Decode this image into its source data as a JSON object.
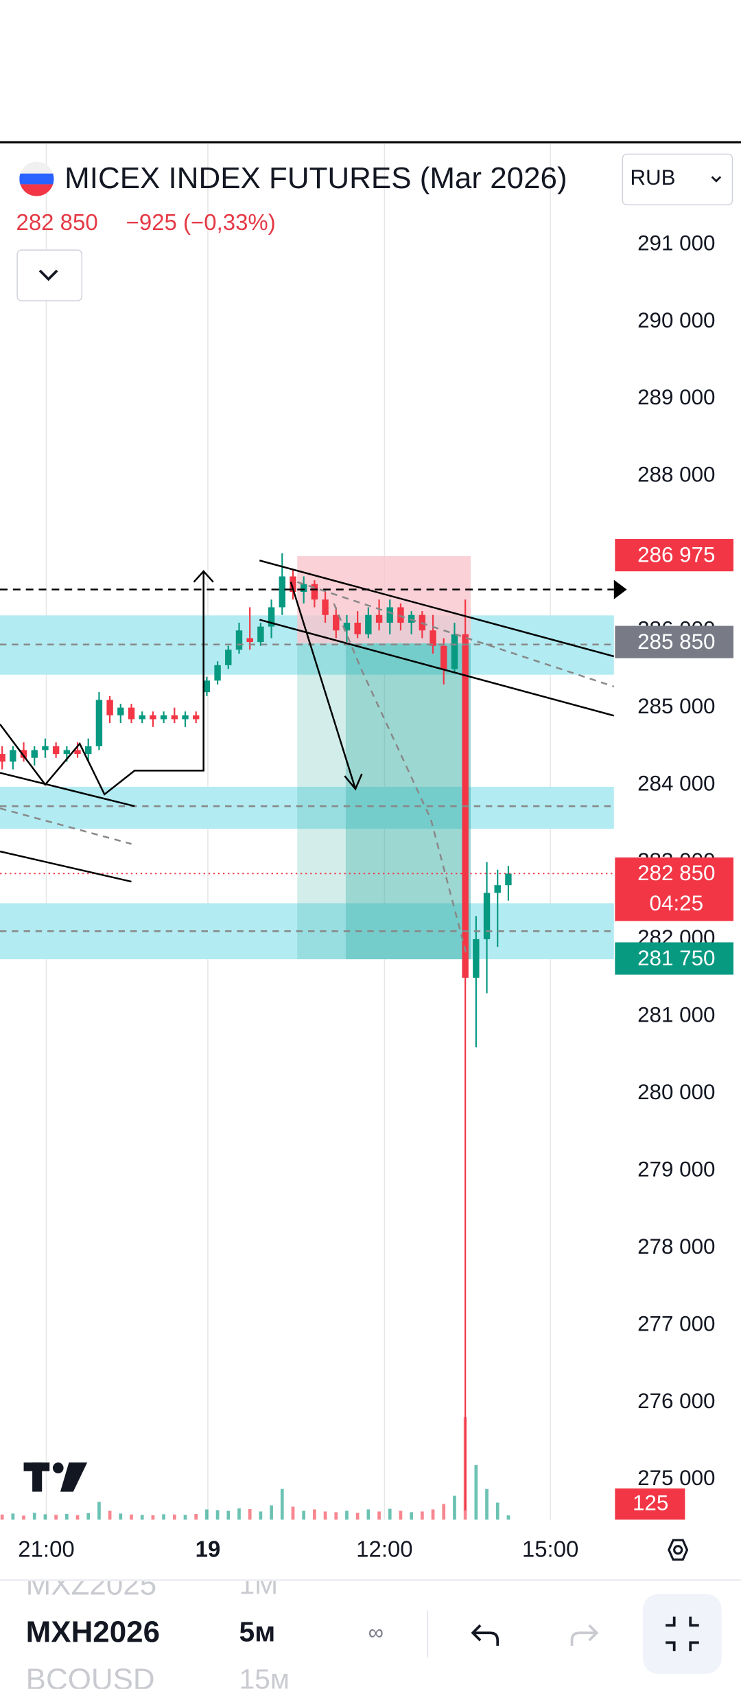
{
  "header": {
    "title": "MICEX INDEX FUTURES (Mar 2026)",
    "price": "282 850",
    "change": "−925 (−0,33%)",
    "currency": "RUB"
  },
  "chart_data": {
    "type": "candlestick",
    "open": [
      284400,
      284300,
      284450,
      284350,
      284450,
      284500,
      284400,
      284450,
      284400,
      284500,
      285100,
      284900,
      285000,
      284850,
      284900,
      284850,
      284900,
      284850,
      284900,
      285200,
      285350,
      285550,
      285750,
      285900,
      285850,
      286050,
      286300,
      286700,
      286500,
      286600,
      286400,
      286200,
      286000,
      286100,
      285950,
      286200,
      286100,
      286300,
      286100,
      286200,
      286000,
      285800,
      285500,
      285950,
      281500,
      282000,
      282600,
      282700
    ],
    "high": [
      284500,
      284500,
      284550,
      284500,
      284600,
      284550,
      284500,
      284550,
      284600,
      285200,
      285150,
      285050,
      285050,
      284950,
      284950,
      284950,
      285000,
      284950,
      284950,
      285400,
      285600,
      285800,
      286100,
      286300,
      286100,
      286400,
      287000,
      286800,
      286700,
      286650,
      286500,
      286300,
      286200,
      286250,
      286300,
      286400,
      286400,
      286350,
      286250,
      286250,
      286200,
      285900,
      286100,
      286400,
      282300,
      283000,
      282900,
      282950
    ],
    "low": [
      284200,
      284200,
      284300,
      284250,
      284350,
      284350,
      284300,
      284350,
      284300,
      284450,
      284800,
      284800,
      284800,
      284800,
      284750,
      284800,
      284800,
      284750,
      284800,
      285150,
      285300,
      285500,
      285700,
      285750,
      285800,
      285900,
      286200,
      286400,
      286350,
      286300,
      286100,
      285900,
      285850,
      285900,
      285900,
      286000,
      285950,
      286000,
      285950,
      285900,
      285700,
      285300,
      285450,
      274600,
      280600,
      281300,
      281900,
      282500
    ],
    "close": [
      284300,
      284450,
      284350,
      284450,
      284500,
      284400,
      284450,
      284400,
      284500,
      285100,
      284900,
      285000,
      284850,
      284900,
      284850,
      284900,
      284850,
      284900,
      284850,
      285350,
      285550,
      285750,
      286000,
      285850,
      286050,
      286300,
      286700,
      286500,
      286600,
      286400,
      286200,
      286000,
      286100,
      285950,
      286200,
      286100,
      286300,
      286100,
      286200,
      286000,
      285800,
      285500,
      285950,
      281500,
      282000,
      282600,
      282700,
      282850
    ],
    "volume": [
      150,
      180,
      120,
      200,
      160,
      140,
      170,
      130,
      190,
      520,
      260,
      180,
      150,
      140,
      130,
      160,
      150,
      140,
      170,
      300,
      280,
      260,
      330,
      310,
      240,
      420,
      900,
      380,
      260,
      300,
      240,
      220,
      260,
      200,
      300,
      240,
      320,
      260,
      220,
      240,
      300,
      460,
      700,
      3000,
      1600,
      900,
      500,
      125
    ],
    "volume_label": "125",
    "up_color": "#089981",
    "down_color": "#f23645",
    "ylim": [
      274480,
      292310
    ],
    "yticks": [
      {
        "value": 291000,
        "label": "291 000"
      },
      {
        "value": 290000,
        "label": "290 000"
      },
      {
        "value": 289000,
        "label": "289 000"
      },
      {
        "value": 288000,
        "label": "288 000"
      },
      {
        "value": 287000,
        "label": "287 000"
      },
      {
        "value": 286000,
        "label": "286 000"
      },
      {
        "value": 285000,
        "label": "285 000"
      },
      {
        "value": 284000,
        "label": "284 000"
      },
      {
        "value": 283000,
        "label": "283 000"
      },
      {
        "value": 282000,
        "label": "282 000"
      },
      {
        "value": 281000,
        "label": "281 000"
      },
      {
        "value": 280000,
        "label": "280 000"
      },
      {
        "value": 279000,
        "label": "279 000"
      },
      {
        "value": 278000,
        "label": "278 000"
      },
      {
        "value": 277000,
        "label": "277 000"
      },
      {
        "value": 276000,
        "label": "276 000"
      },
      {
        "value": 275000,
        "label": "275 000"
      }
    ],
    "time_labels": [
      "21:00",
      "19",
      "12:00",
      "15:00"
    ],
    "price_tags": [
      {
        "value": 286975,
        "label": "286 975",
        "color": "#f23645"
      },
      {
        "value": 285850,
        "label": "285 850",
        "color": "#787b86"
      },
      {
        "value": 282850,
        "label": "282 850",
        "color": "#f23645",
        "countdown": "04:25"
      },
      {
        "value": 281750,
        "label": "281 750",
        "color": "#089981"
      }
    ]
  },
  "toolbar": {
    "symbols": [
      {
        "ticker": "MXZ2025",
        "interval": "1M"
      },
      {
        "ticker": "MXH2026",
        "interval": "5м"
      },
      {
        "ticker": "BCOUSD",
        "interval": "15м"
      }
    ]
  }
}
